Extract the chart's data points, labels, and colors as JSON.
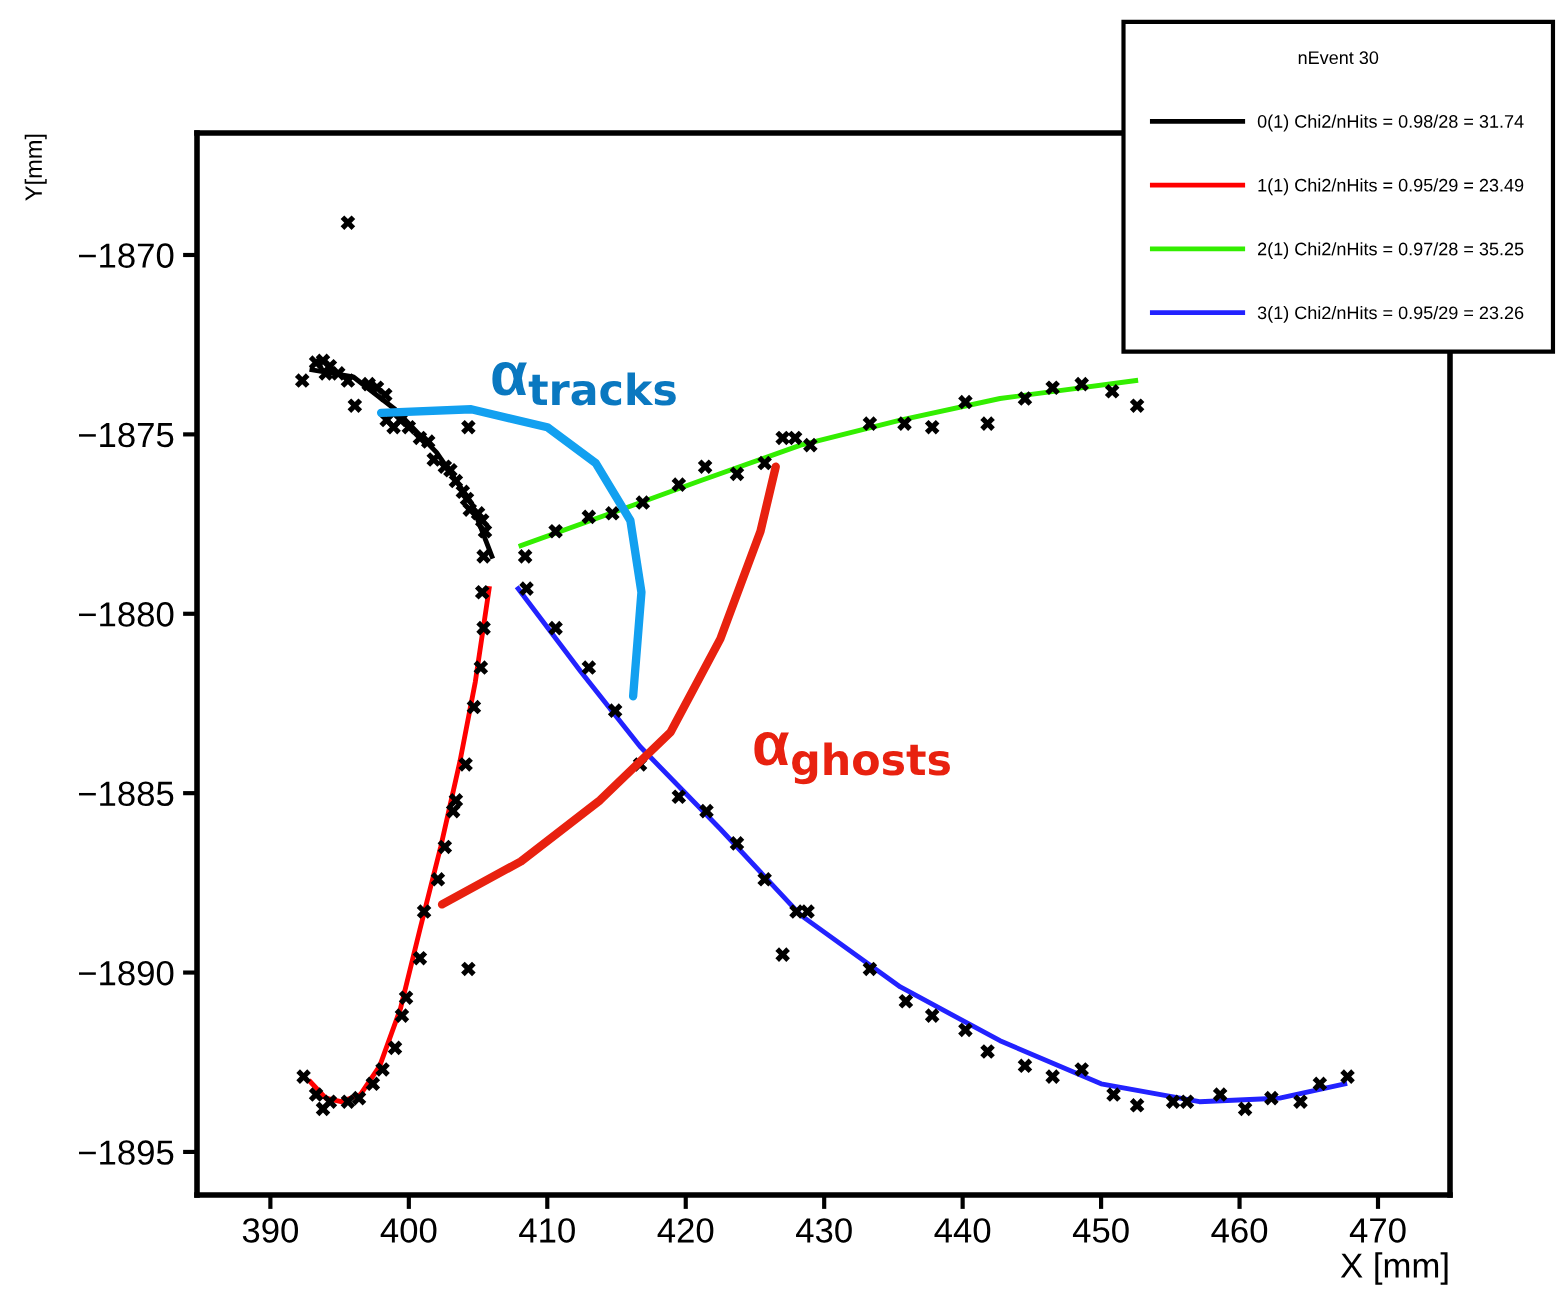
{
  "chart_data": {
    "type": "scatter",
    "xlabel": "X [mm]",
    "ylabel": "Y[mm]",
    "legend_title": "nEvent 30",
    "legend": "top right",
    "xlim": [
      384.7,
      475.2
    ],
    "ylim": [
      -1896.2,
      -1866.6
    ],
    "xticks": [
      390,
      400,
      410,
      420,
      430,
      440,
      450,
      460,
      470
    ],
    "yticks": [
      {
        "value": -1870,
        "label": "−1870"
      },
      {
        "value": -1875,
        "label": "−1875"
      },
      {
        "value": -1880,
        "label": "−1880"
      },
      {
        "value": -1885,
        "label": "−1885"
      },
      {
        "value": -1890,
        "label": "−1890"
      },
      {
        "value": -1895,
        "label": "−1895"
      }
    ],
    "annotations": [
      "α$_{tracks}$",
      "α$_{ghosts}$"
    ],
    "series": [
      {
        "name": "0(1) Chi2/nHits = 0.98/28 = 31.74",
        "type": "line",
        "color": "#000000",
        "line_style": "solid",
        "marker": "none",
        "x": [
          393,
          396,
          399,
          402,
          404.5,
          406
        ],
        "values": [
          -1873.2,
          -1873.4,
          -1874.3,
          -1875.5,
          -1876.9,
          -1878.4
        ]
      },
      {
        "name": "1(1) Chi2/nHits = 0.95/29 = 23.49",
        "type": "line",
        "color": "#ff0000",
        "line_style": "solid",
        "marker": "none",
        "x": [
          392.9,
          394.0,
          395.1,
          396.5,
          397.9,
          399.4,
          400.8,
          402.3,
          403.7,
          404.8,
          405.8
        ],
        "values": [
          -1893.05,
          -1893.5,
          -1893.6,
          -1893.4,
          -1892.6,
          -1891.0,
          -1888.8,
          -1886.5,
          -1884.1,
          -1881.9,
          -1879.3
        ]
      },
      {
        "name": "2(1) Chi2/nHits = 0.97/28 = 35.25",
        "type": "line",
        "color": "#33ee00",
        "line_style": "solid",
        "marker": "none",
        "x": [
          408.1,
          415.3,
          421.0,
          428.3,
          435.5,
          442.7,
          452.5
        ],
        "values": [
          -1878.1,
          -1877.1,
          -1876.3,
          -1875.3,
          -1874.6,
          -1874.0,
          -1873.5
        ]
      },
      {
        "name": "3(1) Chi2/nHits = 0.95/29 = 23.26",
        "type": "line",
        "color": "#2222ff",
        "line_style": "solid",
        "marker": "none",
        "x": [
          407.9,
          412.4,
          416.7,
          422.5,
          428.3,
          435.5,
          442.7,
          450.0,
          457.1,
          462.9,
          467.6
        ],
        "values": [
          -1879.3,
          -1881.6,
          -1883.7,
          -1886.0,
          -1888.4,
          -1890.4,
          -1891.9,
          -1893.1,
          -1893.6,
          -1893.5,
          -1893.1
        ]
      },
      {
        "color": "#000000",
        "marker": "cross",
        "x": [
          392.3,
          393.3,
          393.8,
          394.3,
          394.0,
          394.9,
          395.6,
          396.1,
          397.1,
          397.7,
          398.3,
          398.4,
          398.9,
          399.4,
          400.0,
          400.8,
          401.4,
          401.8,
          402.6,
          403.0,
          403.4,
          403.9,
          404.2,
          404.4,
          405.0,
          405.3,
          405.5,
          405.4,
          404.3,
          395.6,
          405.3,
          405.4,
          405.2,
          404.7,
          404.1,
          403.4,
          403.2,
          402.6,
          402.1,
          401.1,
          400.8,
          399.8,
          399.5,
          399.0,
          398.1,
          397.4,
          396.4,
          395.6,
          394.3,
          393.8,
          392.4,
          393.3,
          404.3,
          408.4,
          410.6,
          413.0,
          414.7,
          416.9,
          419.5,
          421.4,
          423.7,
          425.7,
          427.0,
          427.9,
          429.0,
          433.3,
          435.8,
          437.8,
          440.2,
          441.8,
          444.5,
          446.5,
          448.6,
          450.8,
          452.6,
          408.5,
          410.6,
          413.0,
          414.9,
          416.7,
          419.5,
          421.5,
          423.7,
          425.7,
          428.0,
          428.8,
          427.0,
          433.3,
          435.9,
          437.8,
          440.2,
          441.8,
          444.5,
          446.5,
          448.6,
          450.9,
          452.6,
          455.2,
          456.2,
          458.6,
          460.4,
          462.3,
          464.4,
          465.8,
          467.8
        ],
        "values": [
          -1873.5,
          -1873.0,
          -1872.95,
          -1873.1,
          -1873.3,
          -1873.3,
          -1873.5,
          -1874.2,
          -1873.6,
          -1873.7,
          -1873.9,
          -1874.6,
          -1874.8,
          -1874.6,
          -1874.8,
          -1875.1,
          -1875.2,
          -1875.7,
          -1875.9,
          -1876.0,
          -1876.3,
          -1876.6,
          -1876.8,
          -1877.1,
          -1877.2,
          -1877.4,
          -1877.7,
          -1878.4,
          -1874.8,
          -1869.1,
          -1879.4,
          -1880.4,
          -1881.5,
          -1882.6,
          -1884.2,
          -1885.2,
          -1885.5,
          -1886.5,
          -1887.4,
          -1888.3,
          -1889.6,
          -1890.7,
          -1891.2,
          -1892.1,
          -1892.7,
          -1893.1,
          -1893.5,
          -1893.6,
          -1893.6,
          -1893.8,
          -1892.9,
          -1893.4,
          -1889.9,
          -1878.4,
          -1877.7,
          -1877.3,
          -1877.2,
          -1876.9,
          -1876.4,
          -1875.9,
          -1876.1,
          -1875.8,
          -1875.1,
          -1875.1,
          -1875.3,
          -1874.7,
          -1874.7,
          -1874.8,
          -1874.1,
          -1874.7,
          -1874.0,
          -1873.7,
          -1873.6,
          -1873.8,
          -1874.2,
          -1879.3,
          -1880.4,
          -1881.5,
          -1882.7,
          -1884.2,
          -1885.1,
          -1885.5,
          -1886.4,
          -1887.4,
          -1888.3,
          -1888.3,
          -1889.5,
          -1889.9,
          -1890.8,
          -1891.2,
          -1891.6,
          -1892.2,
          -1892.6,
          -1892.9,
          -1892.7,
          -1893.4,
          -1893.7,
          -1893.6,
          -1893.6,
          -1893.4,
          -1893.8,
          -1893.5,
          -1893.6,
          -1893.1,
          -1892.9
        ]
      }
    ]
  }
}
